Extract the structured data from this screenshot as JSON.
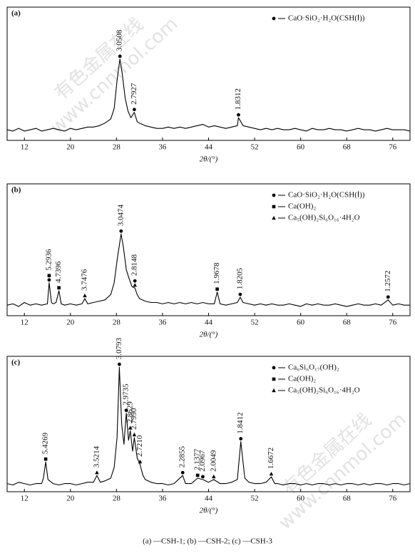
{
  "watermark": [
    "有色金属在线",
    "www.cnnmol.com"
  ],
  "caption": "(a) —CSH-1;  (b) —CSH-2;  (c) —CSH-3",
  "chart_data": [
    {
      "type": "line",
      "panel_label": "(a)",
      "xlabel": "2θ/(°)",
      "color": "#000000",
      "xlim": [
        9,
        79
      ],
      "ylim": [
        0,
        100
      ],
      "xticks": [
        12,
        20,
        28,
        36,
        44,
        52,
        60,
        68,
        76
      ],
      "legend_corner": "upper right",
      "legend": [
        {
          "marker": "circle",
          "label": "CaO·SiO₂·H₂O(CSH(Ⅰ))"
        }
      ],
      "x": [
        9,
        10,
        11,
        12,
        13,
        14,
        15,
        16,
        17,
        18,
        19,
        20,
        21,
        22,
        23,
        24,
        25,
        26,
        27,
        27.6,
        28.1,
        28.6,
        29,
        29.5,
        30,
        30.5,
        31.1,
        31.6,
        32,
        33,
        34,
        35,
        36,
        37,
        38,
        39,
        40,
        41,
        42,
        43,
        44,
        45,
        46,
        47,
        48,
        49,
        49.2,
        50,
        51,
        52,
        53,
        54,
        55,
        56,
        57,
        58,
        59,
        60,
        61,
        62,
        63,
        64,
        65,
        66,
        67,
        68,
        69,
        70,
        71,
        72,
        73,
        74,
        75,
        76,
        77,
        78,
        79
      ],
      "values": [
        8,
        7,
        9,
        7,
        8,
        9,
        7,
        8,
        9,
        8,
        7,
        9,
        8,
        9,
        10,
        10,
        11,
        13,
        16,
        24,
        45,
        61,
        50,
        32,
        22,
        17,
        21,
        14,
        13,
        11,
        10,
        9,
        9,
        10,
        9,
        10,
        9,
        10,
        11,
        12,
        10,
        11,
        10,
        9,
        10,
        11,
        17,
        11,
        10,
        9,
        8,
        9,
        8,
        9,
        8,
        8,
        9,
        8,
        7,
        9,
        8,
        8,
        9,
        8,
        8,
        7,
        8,
        9,
        8,
        8,
        7,
        8,
        9,
        8,
        8,
        8,
        7
      ],
      "annotations": [
        {
          "x": 28.6,
          "y": 61,
          "markers": [
            "circle"
          ],
          "label": "3.0508"
        },
        {
          "x": 31.1,
          "y": 21,
          "markers": [
            "circle"
          ],
          "label": "2.7927"
        },
        {
          "x": 49.2,
          "y": 17,
          "markers": [
            "circle"
          ],
          "label": "1.8312"
        }
      ]
    },
    {
      "type": "line",
      "panel_label": "(b)",
      "xlabel": "2θ/(°)",
      "color": "#000000",
      "xlim": [
        9,
        79
      ],
      "ylim": [
        0,
        100
      ],
      "xticks": [
        12,
        20,
        28,
        36,
        44,
        52,
        60,
        68,
        76
      ],
      "legend_corner": "upper right",
      "legend": [
        {
          "marker": "circle",
          "label": "CaO·SiO₂·H₂O(CSH(Ⅰ))"
        },
        {
          "marker": "square",
          "label": "Ca(OH)₂"
        },
        {
          "marker": "triangle",
          "label": "Ca₅(OH)₂Si₆O₁₆·4H₂O"
        }
      ],
      "x": [
        9,
        10,
        11,
        12,
        13,
        14,
        15,
        16,
        16.3,
        16.7,
        17,
        17.5,
        18,
        18.4,
        19,
        20,
        21,
        22,
        22.5,
        23,
        24,
        25,
        26,
        27,
        27.6,
        28.2,
        28.8,
        29.2,
        29.7,
        30.2,
        30.7,
        31.2,
        31.6,
        32,
        33,
        34,
        35,
        36,
        37,
        38,
        39,
        40,
        41,
        42,
        43,
        44,
        45,
        45.5,
        46,
        47,
        48,
        49,
        49.5,
        50,
        51,
        52,
        53,
        54,
        55,
        56,
        57,
        58,
        59,
        60,
        61,
        62,
        63,
        64,
        65,
        66,
        67,
        68,
        69,
        70,
        71,
        72,
        73,
        74,
        75.2,
        76,
        77,
        78,
        79
      ],
      "values": [
        8,
        9,
        7,
        10,
        8,
        9,
        8,
        9,
        25,
        10,
        9,
        10,
        19,
        9,
        8,
        9,
        8,
        9,
        13,
        9,
        10,
        11,
        12,
        16,
        25,
        45,
        62,
        52,
        35,
        28,
        22,
        21,
        16,
        13,
        11,
        10,
        10,
        9,
        10,
        9,
        10,
        9,
        10,
        9,
        10,
        9,
        9,
        18,
        9,
        8,
        9,
        10,
        14,
        10,
        9,
        8,
        9,
        8,
        9,
        8,
        8,
        9,
        8,
        7,
        9,
        8,
        9,
        8,
        8,
        9,
        8,
        7,
        8,
        9,
        8,
        8,
        9,
        8,
        12,
        8,
        9,
        8,
        8
      ],
      "annotations": [
        {
          "x": 16.3,
          "y": 25,
          "markers": [
            "circle",
            "square"
          ],
          "label": "5.2936"
        },
        {
          "x": 18,
          "y": 19,
          "markers": [
            "square"
          ],
          "label": "4.7396"
        },
        {
          "x": 22.5,
          "y": 13,
          "markers": [
            "triangle"
          ],
          "label": "3.7476"
        },
        {
          "x": 28.8,
          "y": 62,
          "markers": [
            "circle"
          ],
          "label": "3.0474"
        },
        {
          "x": 31.2,
          "y": 21,
          "markers": [
            "triangle",
            "circle"
          ],
          "label": "2.8148"
        },
        {
          "x": 45.5,
          "y": 18,
          "markers": [
            "square"
          ],
          "label": "1.9678"
        },
        {
          "x": 49.5,
          "y": 14,
          "markers": [
            "circle"
          ],
          "label": "1.8205"
        },
        {
          "x": 75.2,
          "y": 12,
          "markers": [
            "circle"
          ],
          "label": "1.2572"
        }
      ]
    },
    {
      "type": "line",
      "panel_label": "(c)",
      "xlabel": "2θ/(°)",
      "color": "#000000",
      "xlim": [
        9,
        79
      ],
      "ylim": [
        0,
        100
      ],
      "xticks": [
        12,
        20,
        28,
        36,
        44,
        52,
        60,
        68,
        76
      ],
      "legend_corner": "upper right",
      "legend": [
        {
          "marker": "circle",
          "label": "Ca₆Si₆O₁₇(OH)₂"
        },
        {
          "marker": "square",
          "label": "Ca(OH)₂"
        },
        {
          "marker": "triangle",
          "label": "Ca₅(OH)₂Si₆O₁₆·4H₂O"
        }
      ],
      "x": [
        9,
        10,
        11,
        12,
        13,
        14,
        15,
        15.3,
        15.7,
        16.1,
        17,
        18,
        19,
        20,
        21,
        22,
        23,
        24,
        24.6,
        25.2,
        26,
        27,
        27.6,
        28.1,
        28.5,
        28.9,
        29.3,
        29.7,
        30.1,
        30.4,
        30.8,
        31.1,
        31.6,
        32.1,
        32.6,
        33,
        34,
        35,
        36,
        37,
        38,
        39.5,
        40,
        41,
        42.1,
        43,
        44,
        44.9,
        46,
        47,
        48,
        49,
        49.6,
        50.3,
        51,
        52,
        53,
        54,
        54.9,
        55.5,
        56,
        57,
        58,
        59,
        60,
        61,
        62,
        63,
        64,
        65,
        66,
        67,
        68,
        69,
        70,
        71,
        72,
        73,
        74,
        75,
        76,
        77,
        78,
        79
      ],
      "values": [
        6,
        5,
        7,
        6,
        5,
        6,
        6,
        10,
        22,
        9,
        6,
        5,
        6,
        6,
        5,
        6,
        7,
        7,
        12,
        7,
        8,
        10,
        18,
        40,
        92,
        50,
        35,
        58,
        38,
        45,
        30,
        40,
        25,
        20,
        12,
        9,
        7,
        6,
        6,
        5,
        6,
        12,
        6,
        6,
        10,
        9,
        7,
        9,
        6,
        6,
        7,
        9,
        37,
        10,
        7,
        6,
        6,
        7,
        11,
        6,
        6,
        5,
        6,
        6,
        5,
        6,
        5,
        6,
        6,
        5,
        6,
        5,
        6,
        6,
        5,
        6,
        5,
        6,
        6,
        5,
        6,
        6,
        5,
        6
      ],
      "annotations": [
        {
          "x": 15.7,
          "y": 22,
          "markers": [
            "square"
          ],
          "label": "5.4269"
        },
        {
          "x": 24.6,
          "y": 12,
          "markers": [
            "triangle"
          ],
          "label": "3.5214"
        },
        {
          "x": 28.5,
          "y": 92,
          "markers": [
            "circle"
          ],
          "label": "3.0793"
        },
        {
          "x": 29.7,
          "y": 58,
          "markers": [
            "circle"
          ],
          "label": "2.9735"
        },
        {
          "x": 30.4,
          "y": 45,
          "markers": [
            "triangle"
          ],
          "label": "2.8629"
        },
        {
          "x": 31.1,
          "y": 40,
          "markers": [
            "triangle"
          ],
          "label": "2.7990"
        },
        {
          "x": 32.1,
          "y": 20,
          "markers": [
            "triangle"
          ],
          "label": "2.7210"
        },
        {
          "x": 39.5,
          "y": 12,
          "markers": [
            "circle"
          ],
          "label": "2.2855"
        },
        {
          "x": 42.1,
          "y": 10,
          "markers": [
            "square"
          ],
          "label": "2.1377"
        },
        {
          "x": 43,
          "y": 9,
          "markers": [
            "circle"
          ],
          "label": "2.0967"
        },
        {
          "x": 44.9,
          "y": 9,
          "markers": [
            "triangle"
          ],
          "label": "2.0049"
        },
        {
          "x": 49.6,
          "y": 37,
          "markers": [
            "circle"
          ],
          "label": "1.8412"
        },
        {
          "x": 54.9,
          "y": 11,
          "markers": [
            "triangle"
          ],
          "label": "1.6672"
        }
      ]
    }
  ]
}
